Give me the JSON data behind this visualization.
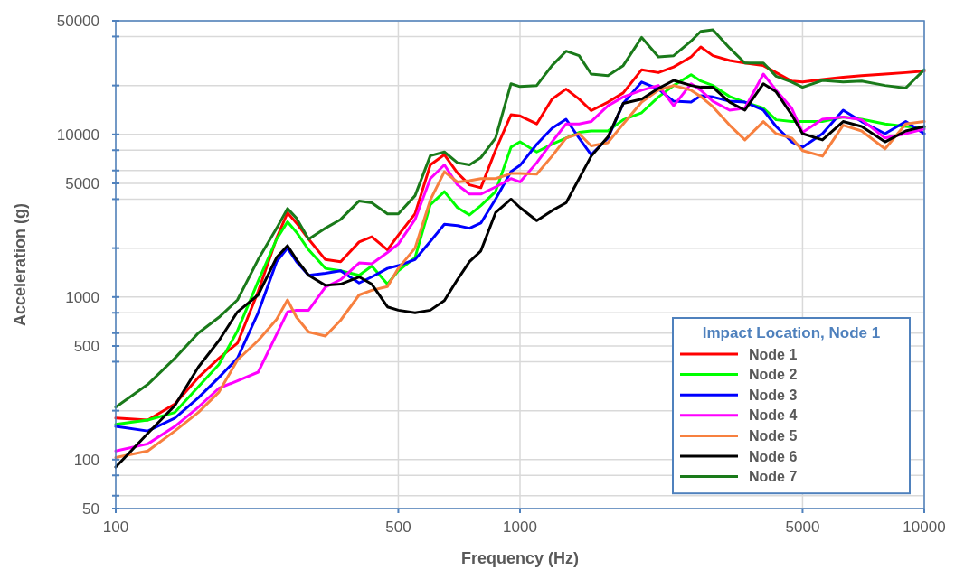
{
  "chart_data": {
    "type": "line",
    "xlabel": "Frequency (Hz)",
    "ylabel": "Acceleration (g)",
    "legend_title": "Impact Location, Node 1",
    "log": "xy",
    "grid": true,
    "legend": "bottom right",
    "marker": "none",
    "line_style": "solid",
    "xlim": [
      100,
      10000
    ],
    "xticks": [
      100,
      500,
      1000,
      5000,
      10000
    ],
    "ylim": [
      50,
      50000
    ],
    "yticks": [
      50,
      {
        "value": 60,
        "label": null
      },
      {
        "value": 80,
        "label": null
      },
      100,
      {
        "value": 200,
        "label": null
      },
      {
        "value": 400,
        "label": null
      },
      500,
      {
        "value": 600,
        "label": null
      },
      {
        "value": 800,
        "label": null
      },
      1000,
      {
        "value": 2000,
        "label": null
      },
      {
        "value": 4000,
        "label": null
      },
      5000,
      {
        "value": 6000,
        "label": null
      },
      {
        "value": 8000,
        "label": null
      },
      10000,
      {
        "value": 20000,
        "label": null
      },
      {
        "value": 40000,
        "label": null
      },
      50000
    ],
    "x": [
      100,
      120,
      140,
      160,
      180,
      200,
      225,
      250,
      266,
      280,
      300,
      330,
      360,
      400,
      430,
      470,
      500,
      550,
      600,
      650,
      700,
      750,
      800,
      870,
      950,
      1000,
      1100,
      1200,
      1300,
      1400,
      1500,
      1650,
      1800,
      2000,
      2200,
      2400,
      2650,
      2800,
      3000,
      3300,
      3600,
      4000,
      4300,
      4700,
      5000,
      5600,
      6300,
      7000,
      8000,
      9000,
      10000
    ],
    "series": [
      {
        "name": "Node 1",
        "color": "#ff0000",
        "values": [
          180,
          175,
          220,
          320,
          420,
          520,
          1080,
          2300,
          3300,
          2850,
          2270,
          1700,
          1650,
          2180,
          2350,
          1950,
          2400,
          3250,
          6500,
          7500,
          5800,
          4900,
          4700,
          8000,
          13200,
          13000,
          11600,
          16500,
          19000,
          16500,
          14000,
          15800,
          18000,
          25000,
          24000,
          26000,
          30000,
          34500,
          30500,
          28500,
          27500,
          26500,
          24000,
          21300,
          21000,
          21800,
          22500,
          23000,
          23500,
          24000,
          24500
        ]
      },
      {
        "name": "Node 2",
        "color": "#00ff00",
        "values": [
          165,
          175,
          195,
          280,
          385,
          620,
          1250,
          2270,
          2900,
          2500,
          1950,
          1500,
          1450,
          1360,
          1550,
          1200,
          1450,
          1750,
          3700,
          4450,
          3550,
          3200,
          3650,
          4450,
          8350,
          9000,
          7800,
          8700,
          9500,
          10300,
          10500,
          10500,
          12300,
          13600,
          17000,
          20000,
          23300,
          21300,
          20000,
          17100,
          15800,
          14500,
          12300,
          12000,
          12000,
          12000,
          12800,
          12400,
          11600,
          11200,
          11000
        ]
      },
      {
        "name": "Node 3",
        "color": "#0000ff",
        "values": [
          160,
          150,
          180,
          240,
          320,
          420,
          800,
          1650,
          2000,
          1650,
          1360,
          1400,
          1450,
          1220,
          1330,
          1500,
          1560,
          1700,
          2200,
          2800,
          2750,
          2650,
          2850,
          4000,
          5900,
          6450,
          8700,
          10900,
          12400,
          9500,
          7500,
          9500,
          15500,
          21000,
          19000,
          16000,
          15800,
          17300,
          17000,
          16000,
          15800,
          14100,
          11200,
          9000,
          8350,
          10100,
          14100,
          12000,
          10100,
          12000,
          10100
        ]
      },
      {
        "name": "Node 4",
        "color": "#ff00ff",
        "values": [
          113,
          125,
          160,
          210,
          275,
          305,
          345,
          590,
          810,
          830,
          830,
          1150,
          1280,
          1620,
          1600,
          1880,
          2120,
          3000,
          5350,
          6500,
          4900,
          4300,
          4300,
          4750,
          5350,
          5100,
          6700,
          9000,
          11600,
          11600,
          12000,
          15000,
          17000,
          18700,
          20000,
          15000,
          20500,
          18700,
          16000,
          14100,
          14500,
          23500,
          18700,
          14500,
          10300,
          12400,
          12800,
          12300,
          9500,
          10100,
          10800
        ]
      },
      {
        "name": "Node 5",
        "color": "#f7803f",
        "values": [
          103,
          113,
          150,
          195,
          260,
          410,
          540,
          730,
          960,
          750,
          610,
          575,
          720,
          1030,
          1100,
          1160,
          1500,
          2000,
          3950,
          5900,
          5100,
          5200,
          5350,
          5350,
          5750,
          5750,
          5700,
          7350,
          9500,
          10100,
          8500,
          8900,
          11600,
          15800,
          18700,
          20000,
          18700,
          17100,
          14800,
          11400,
          9250,
          12000,
          10100,
          9500,
          7950,
          7350,
          11400,
          10500,
          8150,
          11600,
          12000
        ]
      },
      {
        "name": "Node 6",
        "color": "#000000",
        "values": [
          90,
          145,
          215,
          370,
          540,
          810,
          1030,
          1750,
          2070,
          1700,
          1360,
          1180,
          1200,
          1330,
          1200,
          870,
          830,
          800,
          830,
          950,
          1280,
          1650,
          1920,
          3300,
          4000,
          3550,
          2950,
          3400,
          3800,
          5350,
          7350,
          9650,
          15500,
          16500,
          19200,
          21500,
          20000,
          19500,
          19500,
          15800,
          14100,
          20500,
          18300,
          13200,
          10100,
          9250,
          12000,
          11200,
          9000,
          10500,
          11200
        ]
      },
      {
        "name": "Node 7",
        "color": "#1a7a1a",
        "values": [
          210,
          290,
          420,
          600,
          750,
          960,
          1700,
          2650,
          3500,
          3050,
          2270,
          2650,
          3000,
          3900,
          3800,
          3250,
          3250,
          4200,
          7400,
          7800,
          6700,
          6500,
          7200,
          9500,
          20500,
          19700,
          20000,
          26500,
          32500,
          30500,
          23500,
          23000,
          26500,
          39500,
          30000,
          30500,
          37500,
          43000,
          44000,
          34000,
          27500,
          27500,
          22800,
          21000,
          19500,
          21500,
          21000,
          21300,
          20000,
          19300,
          25000
        ]
      }
    ]
  }
}
